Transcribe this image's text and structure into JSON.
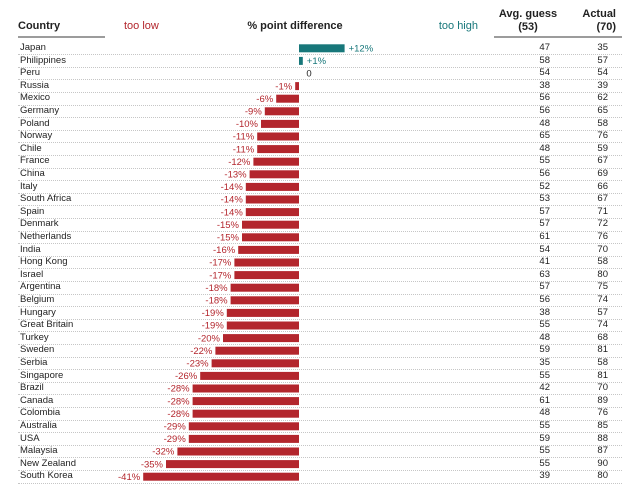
{
  "header": {
    "country": "Country",
    "too_low": "too low",
    "title": "% point difference",
    "too_high": "too high",
    "avg_guess": "Avg. guess",
    "avg_guess_sub": "(53)",
    "actual": "Actual",
    "actual_sub": "(70)"
  },
  "colors": {
    "negative": "#b3262d",
    "positive": "#17777a",
    "zero_label": "#222222"
  },
  "chart_data": {
    "type": "bar",
    "orientation": "horizontal",
    "title": "% point difference",
    "xlabel_left": "too low",
    "xlabel_right": "too high",
    "xlim": [
      -41,
      12
    ],
    "categories": [
      "Japan",
      "Philippines",
      "Peru",
      "Russia",
      "Mexico",
      "Germany",
      "Poland",
      "Norway",
      "Chile",
      "France",
      "China",
      "Italy",
      "South Africa",
      "Spain",
      "Denmark",
      "Netherlands",
      "India",
      "Hong Kong",
      "Israel",
      "Argentina",
      "Belgium",
      "Hungary",
      "Great Britain",
      "Turkey",
      "Sweden",
      "Serbia",
      "Singapore",
      "Brazil",
      "Canada",
      "Colombia",
      "Australia",
      "USA",
      "Malaysia",
      "New Zealand",
      "South Korea"
    ],
    "values": [
      12,
      1,
      0,
      -1,
      -6,
      -9,
      -10,
      -11,
      -11,
      -12,
      -13,
      -14,
      -14,
      -14,
      -15,
      -15,
      -16,
      -17,
      -17,
      -18,
      -18,
      -19,
      -19,
      -20,
      -22,
      -23,
      -26,
      -28,
      -28,
      -28,
      -29,
      -29,
      -32,
      -35,
      -41
    ],
    "labels": [
      "+12%",
      "+1%",
      "0",
      "-1%",
      "-6%",
      "-9%",
      "-10%",
      "-11%",
      "-11%",
      "-12%",
      "-13%",
      "-14%",
      "-14%",
      "-14%",
      "-15%",
      "-15%",
      "-16%",
      "-17%",
      "-17%",
      "-18%",
      "-18%",
      "-19%",
      "-19%",
      "-20%",
      "-22%",
      "-23%",
      "-26%",
      "-28%",
      "-28%",
      "-28%",
      "-29%",
      "-29%",
      "-32%",
      "-35%",
      "-41%"
    ],
    "avg_guess": [
      47,
      58,
      54,
      38,
      56,
      56,
      48,
      65,
      48,
      55,
      56,
      52,
      53,
      57,
      57,
      61,
      54,
      41,
      63,
      57,
      56,
      38,
      55,
      48,
      59,
      35,
      55,
      42,
      61,
      48,
      55,
      59,
      55,
      55,
      39
    ],
    "actual": [
      35,
      57,
      54,
      39,
      62,
      65,
      58,
      76,
      59,
      67,
      69,
      66,
      67,
      71,
      72,
      76,
      70,
      58,
      80,
      75,
      74,
      57,
      74,
      68,
      81,
      58,
      81,
      70,
      89,
      76,
      85,
      88,
      87,
      90,
      80
    ]
  }
}
